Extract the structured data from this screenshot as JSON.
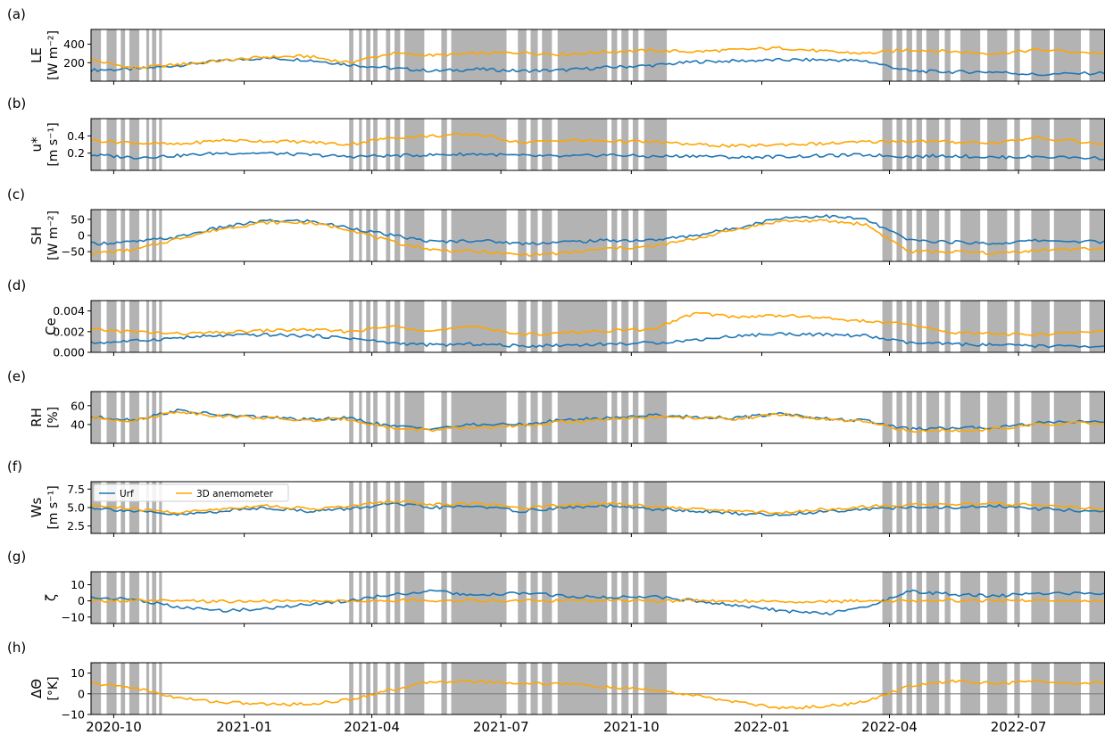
{
  "figure": {
    "time_axis": {
      "start": "2020-09-15",
      "end": "2022-08-31",
      "tick_labels": [
        "2020-10",
        "2021-01",
        "2021-04",
        "2021-07",
        "2021-10",
        "2022-01",
        "2022-04",
        "2022-07"
      ],
      "tick_dates": [
        "2020-10-01",
        "2021-01-01",
        "2021-04-01",
        "2021-07-01",
        "2021-10-01",
        "2022-01-01",
        "2022-04-01",
        "2022-07-01"
      ]
    },
    "colors": {
      "urf": "#1f77b4",
      "anemometer": "#ffa500",
      "shade": "#b3b3b3",
      "zero_line": "#808080"
    },
    "legend": {
      "urf": "Urf",
      "anemometer": "3D anemometer"
    },
    "shaded_periods": [
      [
        "2020-09-15",
        "2020-09-22"
      ],
      [
        "2020-09-26",
        "2020-10-03"
      ],
      [
        "2020-10-06",
        "2020-10-09"
      ],
      [
        "2020-10-12",
        "2020-10-19"
      ],
      [
        "2020-10-24",
        "2020-10-26"
      ],
      [
        "2020-10-28",
        "2020-10-31"
      ],
      [
        "2020-11-02",
        "2020-11-04"
      ],
      [
        "2021-03-16",
        "2021-03-19"
      ],
      [
        "2021-03-23",
        "2021-03-25"
      ],
      [
        "2021-03-28",
        "2021-03-31"
      ],
      [
        "2021-04-02",
        "2021-04-05"
      ],
      [
        "2021-04-11",
        "2021-04-14"
      ],
      [
        "2021-04-17",
        "2021-04-21"
      ],
      [
        "2021-04-24",
        "2021-05-08"
      ],
      [
        "2021-05-20",
        "2021-05-24"
      ],
      [
        "2021-05-27",
        "2021-07-05"
      ],
      [
        "2021-07-13",
        "2021-07-19"
      ],
      [
        "2021-07-22",
        "2021-07-27"
      ],
      [
        "2021-07-30",
        "2021-08-06"
      ],
      [
        "2021-08-10",
        "2021-09-14"
      ],
      [
        "2021-09-17",
        "2021-09-21"
      ],
      [
        "2021-09-24",
        "2021-09-29"
      ],
      [
        "2021-10-02",
        "2021-10-06"
      ],
      [
        "2021-10-10",
        "2021-10-26"
      ],
      [
        "2022-03-27",
        "2022-04-03"
      ],
      [
        "2022-04-06",
        "2022-04-10"
      ],
      [
        "2022-04-13",
        "2022-04-17"
      ],
      [
        "2022-04-20",
        "2022-04-24"
      ],
      [
        "2022-04-27",
        "2022-05-06"
      ],
      [
        "2022-05-10",
        "2022-05-14"
      ],
      [
        "2022-05-21",
        "2022-06-04"
      ],
      [
        "2022-06-09",
        "2022-06-23"
      ],
      [
        "2022-06-28",
        "2022-07-02"
      ],
      [
        "2022-07-10",
        "2022-07-23"
      ],
      [
        "2022-07-26",
        "2022-08-14"
      ],
      [
        "2022-08-20",
        "2022-08-31"
      ]
    ]
  },
  "chart_data": [
    {
      "type": "line",
      "panel_label": "(a)",
      "ylabel": "LE",
      "ylabel_unit": "[W m⁻²]",
      "ylim": [
        0,
        560
      ],
      "yticks": [
        200,
        400
      ],
      "ytick_labels": [
        "200",
        "400"
      ],
      "shaded": true,
      "zero_line": false,
      "legend": false,
      "x": [
        "2020-09-15",
        "2020-10-15",
        "2020-11-15",
        "2020-12-15",
        "2021-01-15",
        "2021-02-15",
        "2021-03-15",
        "2021-04-15",
        "2021-05-15",
        "2021-06-15",
        "2021-07-15",
        "2021-08-15",
        "2021-09-15",
        "2021-10-15",
        "2021-11-15",
        "2021-12-15",
        "2022-01-15",
        "2022-02-15",
        "2022-03-15",
        "2022-04-15",
        "2022-05-15",
        "2022-06-15",
        "2022-07-15",
        "2022-08-31"
      ],
      "series": [
        {
          "name": "Urf",
          "values": [
            120,
            130,
            170,
            220,
            250,
            230,
            180,
            140,
            110,
            130,
            110,
            120,
            150,
            170,
            210,
            220,
            230,
            230,
            220,
            110,
            100,
            100,
            70,
            90
          ]
        },
        {
          "name": "3D anemometer",
          "values": [
            230,
            140,
            180,
            220,
            260,
            270,
            200,
            300,
            280,
            300,
            310,
            290,
            320,
            330,
            320,
            340,
            360,
            320,
            300,
            340,
            320,
            300,
            340,
            300
          ]
        }
      ]
    },
    {
      "type": "line",
      "panel_label": "(b)",
      "ylabel": "u*",
      "ylabel_unit": "[m s⁻¹]",
      "ylim": [
        0,
        0.6
      ],
      "yticks": [
        0.2,
        0.4
      ],
      "ytick_labels": [
        "0.2",
        "0.4"
      ],
      "shaded": true,
      "zero_line": false,
      "legend": false,
      "x": [
        "2020-09-15",
        "2020-10-15",
        "2020-11-15",
        "2020-12-15",
        "2021-01-15",
        "2021-02-15",
        "2021-03-15",
        "2021-04-15",
        "2021-05-15",
        "2021-06-15",
        "2021-07-15",
        "2021-08-15",
        "2021-09-15",
        "2021-10-15",
        "2021-11-15",
        "2021-12-15",
        "2022-01-15",
        "2022-02-15",
        "2022-03-15",
        "2022-04-15",
        "2022-05-15",
        "2022-06-15",
        "2022-07-15",
        "2022-08-31"
      ],
      "series": [
        {
          "name": "Urf",
          "values": [
            0.18,
            0.15,
            0.17,
            0.2,
            0.2,
            0.18,
            0.16,
            0.17,
            0.18,
            0.19,
            0.17,
            0.16,
            0.18,
            0.16,
            0.17,
            0.15,
            0.16,
            0.17,
            0.18,
            0.16,
            0.17,
            0.15,
            0.16,
            0.14
          ]
        },
        {
          "name": "3D anemometer",
          "values": [
            0.35,
            0.32,
            0.3,
            0.35,
            0.34,
            0.33,
            0.3,
            0.38,
            0.4,
            0.42,
            0.32,
            0.35,
            0.34,
            0.33,
            0.3,
            0.28,
            0.3,
            0.31,
            0.33,
            0.34,
            0.33,
            0.32,
            0.38,
            0.3
          ]
        }
      ]
    },
    {
      "type": "line",
      "panel_label": "(c)",
      "ylabel": "SH",
      "ylabel_unit": "[W m⁻²]",
      "ylim": [
        -80,
        80
      ],
      "yticks": [
        -50,
        0,
        50
      ],
      "ytick_labels": [
        "−50",
        "0",
        "50"
      ],
      "shaded": true,
      "zero_line": false,
      "legend": false,
      "x": [
        "2020-09-15",
        "2020-10-15",
        "2020-11-15",
        "2020-12-15",
        "2021-01-15",
        "2021-02-15",
        "2021-03-15",
        "2021-04-15",
        "2021-05-15",
        "2021-06-15",
        "2021-07-15",
        "2021-08-15",
        "2021-09-15",
        "2021-10-15",
        "2021-11-15",
        "2021-12-15",
        "2022-01-15",
        "2022-02-15",
        "2022-03-15",
        "2022-04-15",
        "2022-05-15",
        "2022-06-15",
        "2022-07-15",
        "2022-08-31"
      ],
      "series": [
        {
          "name": "Urf",
          "values": [
            -25,
            -20,
            -5,
            25,
            45,
            45,
            25,
            0,
            -20,
            -15,
            -25,
            -20,
            -15,
            -15,
            0,
            25,
            55,
            60,
            50,
            -15,
            -20,
            -25,
            -15,
            -20
          ]
        },
        {
          "name": "3D anemometer",
          "values": [
            -55,
            -45,
            -10,
            20,
            40,
            40,
            20,
            -20,
            -45,
            -50,
            -60,
            -55,
            -40,
            -35,
            -10,
            20,
            45,
            45,
            35,
            -50,
            -50,
            -55,
            -45,
            -40
          ]
        }
      ]
    },
    {
      "type": "line",
      "panel_label": "(d)",
      "ylabel": "Ce",
      "ylabel_unit": "",
      "ylim": [
        0,
        0.005
      ],
      "yticks": [
        0,
        0.002,
        0.004
      ],
      "ytick_labels": [
        "0.000",
        "0.002",
        "0.004"
      ],
      "shaded": true,
      "zero_line": false,
      "legend": false,
      "x": [
        "2020-09-15",
        "2020-10-15",
        "2020-11-15",
        "2020-12-15",
        "2021-01-15",
        "2021-02-15",
        "2021-03-15",
        "2021-04-15",
        "2021-05-15",
        "2021-06-15",
        "2021-07-15",
        "2021-08-15",
        "2021-09-15",
        "2021-10-15",
        "2021-11-15",
        "2021-12-15",
        "2022-01-15",
        "2022-02-15",
        "2022-03-15",
        "2022-04-15",
        "2022-05-15",
        "2022-06-15",
        "2022-07-15",
        "2022-08-31"
      ],
      "series": [
        {
          "name": "Urf",
          "values": [
            0.0009,
            0.0011,
            0.0014,
            0.0016,
            0.0017,
            0.0016,
            0.0014,
            0.0009,
            0.0007,
            0.0008,
            0.0006,
            0.0007,
            0.0008,
            0.0009,
            0.0012,
            0.0016,
            0.0018,
            0.0017,
            0.0016,
            0.0009,
            0.0008,
            0.0007,
            0.0006,
            0.0006
          ]
        },
        {
          "name": "3D anemometer",
          "values": [
            0.0022,
            0.002,
            0.0018,
            0.0019,
            0.0021,
            0.0022,
            0.002,
            0.0025,
            0.0021,
            0.0025,
            0.0017,
            0.0019,
            0.0021,
            0.0022,
            0.0038,
            0.0034,
            0.0036,
            0.0033,
            0.003,
            0.0027,
            0.0019,
            0.0018,
            0.0017,
            0.0021
          ]
        }
      ]
    },
    {
      "type": "line",
      "panel_label": "(e)",
      "ylabel": "RH",
      "ylabel_unit": "[%]",
      "ylim": [
        20,
        75
      ],
      "yticks": [
        40,
        60
      ],
      "ytick_labels": [
        "40",
        "60"
      ],
      "shaded": true,
      "zero_line": false,
      "legend": false,
      "x": [
        "2020-09-15",
        "2020-10-15",
        "2020-11-15",
        "2020-12-15",
        "2021-01-15",
        "2021-02-15",
        "2021-03-15",
        "2021-04-15",
        "2021-05-15",
        "2021-06-15",
        "2021-07-15",
        "2021-08-15",
        "2021-09-15",
        "2021-10-15",
        "2021-11-15",
        "2021-12-15",
        "2022-01-15",
        "2022-02-15",
        "2022-03-15",
        "2022-04-15",
        "2022-05-15",
        "2022-06-15",
        "2022-07-15",
        "2022-08-31"
      ],
      "series": [
        {
          "name": "Urf",
          "values": [
            48,
            45,
            55,
            50,
            48,
            45,
            47,
            38,
            36,
            40,
            40,
            45,
            47,
            50,
            48,
            47,
            52,
            46,
            44,
            35,
            36,
            37,
            42,
            44
          ]
        },
        {
          "name": "3D anemometer",
          "values": [
            47,
            44,
            54,
            49,
            47,
            44,
            46,
            36,
            34,
            37,
            38,
            43,
            45,
            48,
            47,
            46,
            51,
            45,
            43,
            33,
            34,
            35,
            40,
            42
          ]
        }
      ]
    },
    {
      "type": "line",
      "panel_label": "(f)",
      "ylabel": "Ws",
      "ylabel_unit": "[m s⁻¹]",
      "ylim": [
        1.5,
        8.5
      ],
      "yticks": [
        2.5,
        5.0,
        7.5
      ],
      "ytick_labels": [
        "2.5",
        "5.0",
        "7.5"
      ],
      "shaded": true,
      "zero_line": false,
      "legend": true,
      "x": [
        "2020-09-15",
        "2020-10-15",
        "2020-11-15",
        "2020-12-15",
        "2021-01-15",
        "2021-02-15",
        "2021-03-15",
        "2021-04-15",
        "2021-05-15",
        "2021-06-15",
        "2021-07-15",
        "2021-08-15",
        "2021-09-15",
        "2021-10-15",
        "2021-11-15",
        "2021-12-15",
        "2022-01-15",
        "2022-02-15",
        "2022-03-15",
        "2022-04-15",
        "2022-05-15",
        "2022-06-15",
        "2022-07-15",
        "2022-08-31"
      ],
      "series": [
        {
          "name": "Urf",
          "values": [
            5.0,
            4.5,
            4.0,
            4.5,
            5.0,
            4.5,
            4.8,
            5.5,
            5.0,
            5.2,
            4.5,
            5.0,
            5.2,
            4.8,
            4.5,
            4.2,
            4.0,
            4.5,
            4.8,
            5.0,
            5.0,
            5.2,
            4.8,
            4.5
          ]
        },
        {
          "name": "3D anemometer",
          "values": [
            5.3,
            4.8,
            4.3,
            4.8,
            5.3,
            4.8,
            5.1,
            5.9,
            5.4,
            5.6,
            4.9,
            5.4,
            5.6,
            5.2,
            4.8,
            4.5,
            4.3,
            4.8,
            5.1,
            5.4,
            5.4,
            5.6,
            5.2,
            4.8
          ]
        }
      ]
    },
    {
      "type": "line",
      "panel_label": "(g)",
      "ylabel": "ζ",
      "ylabel_unit": "",
      "ylim": [
        -14,
        18
      ],
      "yticks": [
        -10,
        0,
        10
      ],
      "ytick_labels": [
        "−10",
        "0",
        "10"
      ],
      "shaded": true,
      "zero_line": false,
      "legend": false,
      "x": [
        "2020-09-15",
        "2020-10-15",
        "2020-11-15",
        "2020-12-15",
        "2021-01-15",
        "2021-02-15",
        "2021-03-15",
        "2021-04-15",
        "2021-05-15",
        "2021-06-15",
        "2021-07-15",
        "2021-08-15",
        "2021-09-15",
        "2021-10-15",
        "2021-11-15",
        "2021-12-15",
        "2022-01-15",
        "2022-02-15",
        "2022-03-15",
        "2022-04-15",
        "2022-05-15",
        "2022-06-15",
        "2022-07-15",
        "2022-08-31"
      ],
      "series": [
        {
          "name": "Urf",
          "values": [
            2,
            1,
            -4,
            -6,
            -5,
            -2,
            0,
            4,
            6,
            3,
            5,
            3,
            2,
            3,
            0,
            -3,
            -6,
            -8,
            -4,
            6,
            4,
            3,
            5,
            4
          ]
        },
        {
          "name": "3D anemometer",
          "values": [
            0,
            0,
            -0.2,
            -0.3,
            -0.3,
            -0.2,
            0,
            0.2,
            0.3,
            0.1,
            0.2,
            0.1,
            0.1,
            0.1,
            0,
            -0.1,
            -0.3,
            -0.4,
            -0.2,
            0.3,
            0.2,
            0.1,
            0.2,
            0.2
          ]
        }
      ]
    },
    {
      "type": "line",
      "panel_label": "(h)",
      "ylabel": "ΔΘ",
      "ylabel_unit": "[°K]",
      "ylim": [
        -10,
        15
      ],
      "yticks": [
        -10,
        0,
        10
      ],
      "ytick_labels": [
        "−10",
        "0",
        "10"
      ],
      "shaded": true,
      "zero_line": true,
      "legend": false,
      "x": [
        "2020-09-15",
        "2020-10-15",
        "2020-11-15",
        "2020-12-15",
        "2021-01-15",
        "2021-02-15",
        "2021-03-15",
        "2021-04-15",
        "2021-05-15",
        "2021-06-15",
        "2021-07-15",
        "2021-08-15",
        "2021-09-15",
        "2021-10-15",
        "2021-11-15",
        "2021-12-15",
        "2022-01-15",
        "2022-02-15",
        "2022-03-15",
        "2022-04-15",
        "2022-05-15",
        "2022-06-15",
        "2022-07-15",
        "2022-08-31"
      ],
      "series": [
        {
          "name": "3D anemometer",
          "values": [
            5,
            3,
            -2,
            -4,
            -5,
            -5,
            -3,
            2,
            6,
            6,
            5,
            5,
            3,
            2,
            -1,
            -4,
            -7,
            -6,
            -4,
            4,
            6,
            5,
            6,
            5
          ]
        }
      ]
    }
  ]
}
